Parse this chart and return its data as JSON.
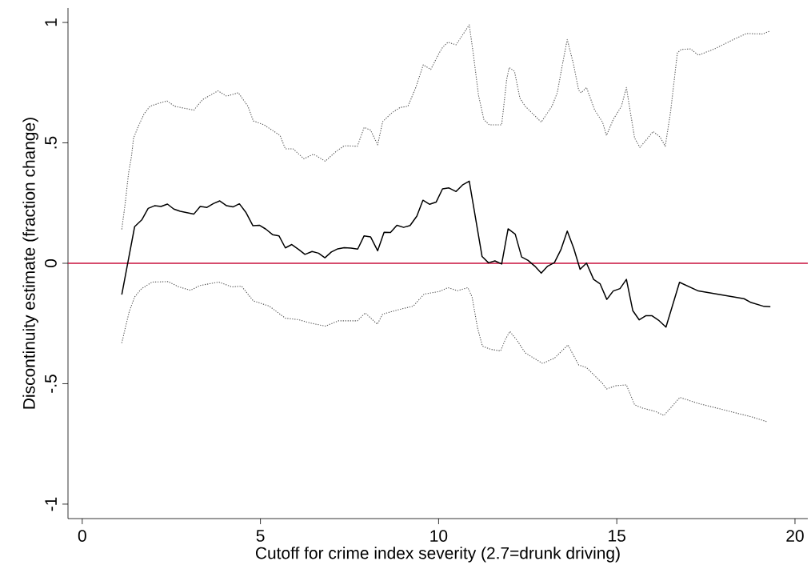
{
  "chart_data": {
    "type": "line",
    "xlabel": "Cutoff for crime index severity (2.7=drunk driving)",
    "ylabel": "Discontinuity estimate (fraction change)",
    "xlim": [
      -0.4,
      20.36
    ],
    "ylim": [
      -1.06,
      1.06
    ],
    "xticks": [
      0,
      5,
      10,
      15,
      20
    ],
    "yticks": [
      {
        "value": -1,
        "label": "-1"
      },
      {
        "value": -0.5,
        "label": "-.5"
      },
      {
        "value": 0,
        "label": "0"
      },
      {
        "value": 0.5,
        "label": ".5"
      },
      {
        "value": 1,
        "label": "1"
      }
    ],
    "ref_lines": [
      {
        "axis": "y",
        "value": 0,
        "color": "#c8103c"
      }
    ],
    "series": [
      {
        "color": "#000000",
        "line_style": "solid",
        "x": [
          1.11,
          1.47,
          1.67,
          1.85,
          2.03,
          2.21,
          2.39,
          2.57,
          2.75,
          3.13,
          3.31,
          3.5,
          3.68,
          3.86,
          4.05,
          4.23,
          4.41,
          4.59,
          4.79,
          4.97,
          5.15,
          5.34,
          5.52,
          5.7,
          5.88,
          6.07,
          6.25,
          6.45,
          6.63,
          6.81,
          6.99,
          7.17,
          7.35,
          7.54,
          7.73,
          7.91,
          8.09,
          8.29,
          8.47,
          8.65,
          8.83,
          9.02,
          9.2,
          9.39,
          9.56,
          9.75,
          9.93,
          10.11,
          10.29,
          10.49,
          10.67,
          10.86,
          11.22,
          11.4,
          11.58,
          11.77,
          11.95,
          12.15,
          12.33,
          12.51,
          12.7,
          12.88,
          13.06,
          13.25,
          13.43,
          13.61,
          13.79,
          13.97,
          14.15,
          14.35,
          14.53,
          14.72,
          14.9,
          15.09,
          15.27,
          15.45,
          15.63,
          15.81,
          15.99,
          16.17,
          16.38,
          16.76,
          17.29,
          18.57,
          18.77,
          19.13,
          19.31
        ],
        "values": [
          -0.13,
          0.152,
          0.18,
          0.228,
          0.239,
          0.236,
          0.246,
          0.225,
          0.216,
          0.204,
          0.236,
          0.232,
          0.248,
          0.259,
          0.239,
          0.234,
          0.247,
          0.212,
          0.156,
          0.158,
          0.142,
          0.119,
          0.114,
          0.064,
          0.078,
          0.058,
          0.037,
          0.049,
          0.042,
          0.023,
          0.047,
          0.06,
          0.065,
          0.063,
          0.059,
          0.114,
          0.11,
          0.052,
          0.129,
          0.128,
          0.158,
          0.149,
          0.157,
          0.196,
          0.262,
          0.245,
          0.254,
          0.309,
          0.313,
          0.298,
          0.325,
          0.341,
          0.028,
          0.002,
          0.01,
          -0.003,
          0.143,
          0.121,
          0.026,
          0.012,
          -0.012,
          -0.041,
          -0.012,
          0.003,
          0.056,
          0.134,
          0.063,
          -0.025,
          0.001,
          -0.067,
          -0.085,
          -0.15,
          -0.115,
          -0.105,
          -0.067,
          -0.197,
          -0.235,
          -0.218,
          -0.218,
          -0.236,
          -0.265,
          -0.079,
          -0.115,
          -0.147,
          -0.163,
          -0.179,
          -0.18
        ]
      },
      {
        "color": "#555555",
        "line_style": "dotted",
        "x": [
          1.11,
          1.21,
          1.3,
          1.38,
          1.44,
          1.56,
          1.73,
          1.9,
          2.18,
          2.38,
          2.59,
          3.13,
          3.38,
          3.81,
          4.05,
          4.38,
          4.65,
          4.8,
          5.1,
          5.55,
          5.7,
          5.92,
          6.22,
          6.49,
          6.82,
          7.12,
          7.35,
          7.72,
          7.91,
          8.09,
          8.29,
          8.43,
          8.69,
          8.92,
          9.14,
          9.36,
          9.57,
          9.78,
          10.02,
          10.11,
          10.26,
          10.49,
          10.86,
          10.97,
          11.12,
          11.27,
          11.42,
          11.77,
          11.91,
          11.98,
          12.13,
          12.28,
          12.43,
          12.88,
          13.18,
          13.33,
          13.48,
          13.61,
          13.78,
          13.93,
          14.0,
          14.15,
          14.38,
          14.6,
          14.71,
          14.9,
          15.13,
          15.27,
          15.39,
          15.5,
          15.65,
          16.02,
          16.21,
          16.36,
          16.51,
          16.7,
          16.81,
          17.07,
          17.29,
          17.74,
          18.27,
          18.64,
          19.09,
          19.28
        ],
        "values": [
          0.141,
          0.254,
          0.375,
          0.442,
          0.52,
          0.564,
          0.619,
          0.652,
          0.666,
          0.674,
          0.652,
          0.636,
          0.68,
          0.716,
          0.694,
          0.708,
          0.652,
          0.591,
          0.575,
          0.531,
          0.475,
          0.475,
          0.434,
          0.453,
          0.424,
          0.464,
          0.488,
          0.486,
          0.564,
          0.553,
          0.492,
          0.588,
          0.625,
          0.647,
          0.652,
          0.73,
          0.824,
          0.805,
          0.874,
          0.896,
          0.918,
          0.907,
          0.99,
          0.874,
          0.697,
          0.597,
          0.575,
          0.575,
          0.763,
          0.813,
          0.797,
          0.686,
          0.652,
          0.586,
          0.652,
          0.708,
          0.83,
          0.929,
          0.83,
          0.719,
          0.708,
          0.73,
          0.636,
          0.586,
          0.531,
          0.597,
          0.652,
          0.73,
          0.619,
          0.52,
          0.481,
          0.547,
          0.525,
          0.486,
          0.63,
          0.874,
          0.888,
          0.89,
          0.864,
          0.89,
          0.929,
          0.954,
          0.952,
          0.963
        ]
      },
      {
        "color": "#555555",
        "line_style": "dotted",
        "x": [
          1.11,
          1.21,
          1.32,
          1.47,
          1.66,
          1.96,
          2.41,
          2.71,
          3.04,
          3.31,
          3.83,
          4.2,
          4.47,
          4.8,
          5.25,
          5.7,
          6.07,
          6.37,
          6.82,
          7.19,
          7.72,
          7.94,
          8.28,
          8.43,
          8.92,
          9.29,
          9.59,
          10.02,
          10.26,
          10.53,
          10.82,
          10.94,
          11.09,
          11.23,
          11.46,
          11.74,
          11.87,
          12.0,
          12.21,
          12.43,
          12.92,
          13.25,
          13.63,
          13.93,
          14.15,
          14.6,
          14.71,
          14.98,
          15.27,
          15.5,
          15.72,
          16.1,
          16.32,
          16.77,
          17.29,
          18.04,
          18.79,
          19.2
        ],
        "values": [
          -0.331,
          -0.267,
          -0.2,
          -0.14,
          -0.106,
          -0.078,
          -0.076,
          -0.098,
          -0.112,
          -0.092,
          -0.078,
          -0.098,
          -0.095,
          -0.156,
          -0.178,
          -0.228,
          -0.234,
          -0.247,
          -0.261,
          -0.239,
          -0.239,
          -0.206,
          -0.253,
          -0.211,
          -0.191,
          -0.178,
          -0.128,
          -0.117,
          -0.101,
          -0.114,
          -0.101,
          -0.14,
          -0.267,
          -0.344,
          -0.357,
          -0.364,
          -0.317,
          -0.283,
          -0.322,
          -0.372,
          -0.416,
          -0.394,
          -0.339,
          -0.422,
          -0.433,
          -0.499,
          -0.522,
          -0.508,
          -0.505,
          -0.588,
          -0.601,
          -0.616,
          -0.632,
          -0.557,
          -0.582,
          -0.61,
          -0.638,
          -0.657
        ]
      }
    ]
  }
}
